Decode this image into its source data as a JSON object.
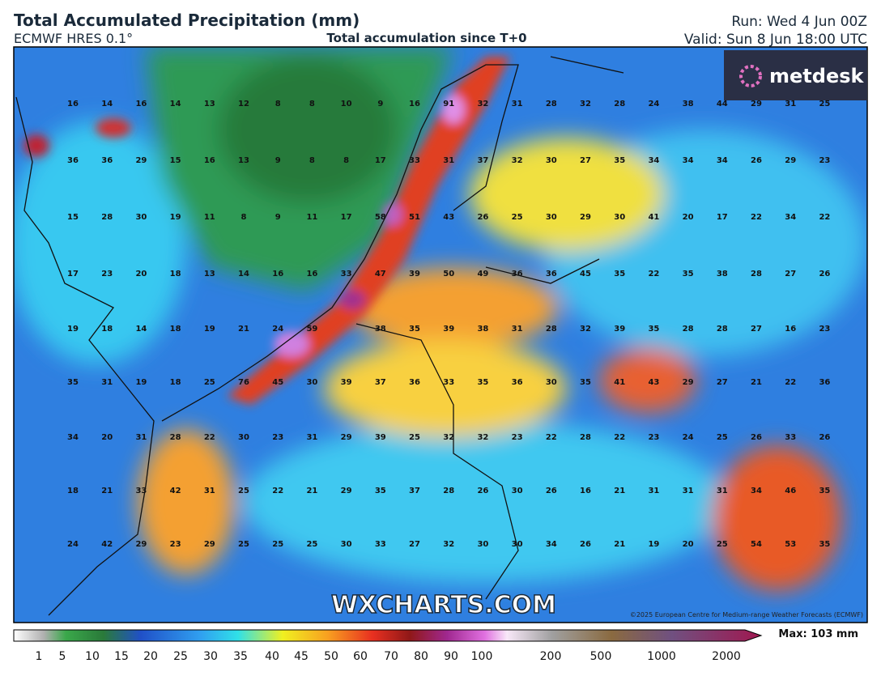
{
  "header": {
    "title": "Total Accumulated Precipitation (mm)",
    "model": "ECMWF HRES 0.1°",
    "subtitle": "Total accumulation since T+0",
    "run": "Run: Wed 4 Jun 00Z",
    "valid": "Valid: Sun 8 Jun 18:00 UTC"
  },
  "logo": "metdesk",
  "watermark": "WXCHARTS.COM",
  "copyright": "©2025 European Centre for Medium-range Weather Forecasts (ECMWF)",
  "grid": {
    "rows": [
      [
        16,
        14,
        16,
        14,
        13,
        12,
        8,
        8,
        10,
        9,
        16,
        91,
        32,
        31,
        28,
        32,
        28,
        24,
        38,
        44,
        29,
        31,
        25
      ],
      [
        36,
        36,
        29,
        15,
        16,
        13,
        9,
        8,
        8,
        17,
        33,
        31,
        37,
        32,
        30,
        27,
        35,
        34,
        34,
        34,
        26,
        29,
        23
      ],
      [
        15,
        28,
        30,
        19,
        11,
        8,
        9,
        11,
        17,
        58,
        51,
        43,
        26,
        25,
        30,
        29,
        30,
        41,
        20,
        17,
        22,
        34,
        22
      ],
      [
        17,
        23,
        20,
        18,
        13,
        14,
        16,
        16,
        33,
        47,
        39,
        50,
        49,
        36,
        36,
        45,
        35,
        22,
        35,
        38,
        28,
        27,
        26
      ],
      [
        19,
        18,
        14,
        18,
        19,
        21,
        24,
        59,
        null,
        38,
        35,
        39,
        38,
        31,
        28,
        32,
        39,
        35,
        28,
        28,
        27,
        16,
        23
      ],
      [
        35,
        31,
        19,
        18,
        25,
        76,
        45,
        30,
        39,
        37,
        36,
        33,
        35,
        36,
        30,
        35,
        41,
        43,
        29,
        27,
        21,
        22,
        36
      ],
      [
        34,
        20,
        31,
        28,
        22,
        30,
        23,
        31,
        29,
        39,
        25,
        32,
        32,
        23,
        22,
        28,
        22,
        23,
        24,
        25,
        26,
        33,
        26
      ],
      [
        18,
        21,
        33,
        42,
        31,
        25,
        22,
        21,
        29,
        35,
        37,
        28,
        26,
        30,
        26,
        16,
        21,
        31,
        31,
        31,
        34,
        46,
        35
      ],
      [
        24,
        42,
        29,
        23,
        29,
        25,
        25,
        25,
        30,
        33,
        27,
        32,
        30,
        30,
        34,
        26,
        21,
        19,
        20,
        25,
        54,
        53,
        35
      ]
    ]
  },
  "colorbar": {
    "ticks": [
      1,
      5,
      10,
      15,
      20,
      25,
      30,
      35,
      40,
      45,
      50,
      60,
      70,
      80,
      90,
      100,
      200,
      500,
      1000,
      2000
    ],
    "max_label": "Max: 103 mm"
  }
}
